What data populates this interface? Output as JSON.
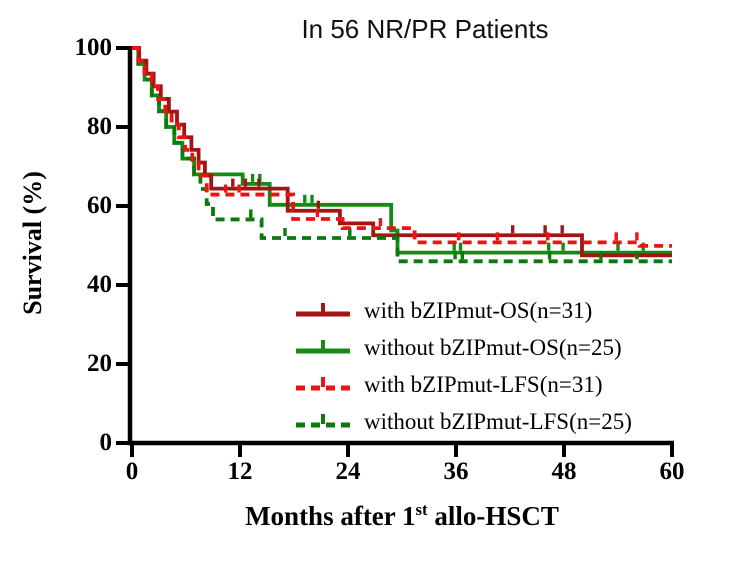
{
  "title": "In 56 NR/PR Patients",
  "colors": {
    "axis": "#000000",
    "dark_red": "#A31515",
    "green": "#168A16",
    "bright_red": "#EE1212",
    "dark_green": "#0A7A0A"
  },
  "y_axis": {
    "label": "Survival (%)",
    "ticks": [
      0,
      20,
      40,
      60,
      80,
      100
    ]
  },
  "x_axis": {
    "label_main": "Months after 1",
    "label_sup": "st",
    "label_rest": " allo-HSCT",
    "ticks": [
      0,
      12,
      24,
      36,
      48,
      60
    ]
  },
  "chart_data": {
    "type": "line",
    "subtype": "kaplan-meier-step",
    "title": "In 56 NR/PR Patients",
    "xlabel": "Months after 1st allo-HSCT",
    "ylabel": "Survival (%)",
    "xlim": [
      0,
      60
    ],
    "ylim": [
      0,
      100
    ],
    "grid": false,
    "legend_position": "inside lower right",
    "series": [
      {
        "name": "with bZIPmut-OS(n=31)",
        "id": "os-with-bzipmut",
        "color": "#A31515",
        "style": "solid",
        "steps": [
          [
            0,
            100
          ],
          [
            0.8,
            96.8
          ],
          [
            1.6,
            93.5
          ],
          [
            2.4,
            90.3
          ],
          [
            3.2,
            87.1
          ],
          [
            4.1,
            83.9
          ],
          [
            5,
            80.6
          ],
          [
            5.8,
            77.4
          ],
          [
            6.6,
            74.2
          ],
          [
            7.4,
            71
          ],
          [
            8.1,
            67.7
          ],
          [
            8.8,
            64.4
          ],
          [
            17.3,
            58.8
          ],
          [
            23.1,
            55.6
          ],
          [
            26.8,
            52.6
          ],
          [
            50,
            47.5
          ]
        ],
        "censors": [
          [
            11.2,
            64.4
          ],
          [
            12.6,
            64.4
          ],
          [
            14.1,
            64.4
          ],
          [
            20.7,
            58.8
          ],
          [
            42.3,
            52.6
          ],
          [
            45.9,
            52.6
          ],
          [
            47.8,
            52.6
          ]
        ]
      },
      {
        "name": "without bZIPmut-OS(n=25)",
        "id": "os-without-bzipmut",
        "color": "#168A16",
        "style": "solid",
        "steps": [
          [
            0,
            100
          ],
          [
            0.7,
            96
          ],
          [
            1.4,
            92
          ],
          [
            2.2,
            88
          ],
          [
            3,
            84
          ],
          [
            3.8,
            80
          ],
          [
            4.7,
            76
          ],
          [
            5.6,
            72
          ],
          [
            6.9,
            68
          ],
          [
            12.3,
            65.6
          ],
          [
            15.3,
            60.3
          ],
          [
            28.8,
            53.8
          ],
          [
            29.5,
            48.2
          ]
        ],
        "censors": [
          [
            13.4,
            65.6
          ],
          [
            14.2,
            65.6
          ],
          [
            19.2,
            60.3
          ],
          [
            20,
            60.3
          ],
          [
            35.8,
            48.2
          ],
          [
            36.5,
            48.2
          ],
          [
            46.3,
            48.2
          ],
          [
            47.9,
            48.2
          ],
          [
            54,
            48.2
          ],
          [
            56.8,
            48.2
          ]
        ]
      },
      {
        "name": "with bZIPmut-LFS(n=31)",
        "id": "lfs-with-bzipmut",
        "color": "#EE1212",
        "style": "dashed",
        "steps": [
          [
            0,
            100
          ],
          [
            0.7,
            96.8
          ],
          [
            1.4,
            93.5
          ],
          [
            2.2,
            90.3
          ],
          [
            2.9,
            87.1
          ],
          [
            3.7,
            83.9
          ],
          [
            4.4,
            80.6
          ],
          [
            5.2,
            77.4
          ],
          [
            5.9,
            74.2
          ],
          [
            6.7,
            71
          ],
          [
            7.4,
            67.7
          ],
          [
            8.3,
            62.9
          ],
          [
            17.9,
            56.7
          ],
          [
            23.4,
            54.4
          ],
          [
            31.4,
            50.8
          ],
          [
            56.4,
            49.9
          ]
        ],
        "censors": [
          [
            10.4,
            62.9
          ],
          [
            11.9,
            62.9
          ],
          [
            20.6,
            56.7
          ],
          [
            27.6,
            54.4
          ],
          [
            36.3,
            50.8
          ],
          [
            40.6,
            50.8
          ],
          [
            46.2,
            50.8
          ],
          [
            53.8,
            50.8
          ],
          [
            56.1,
            50.8
          ]
        ]
      },
      {
        "name": "without bZIPmut-LFS(n=25)",
        "id": "lfs-without-bzipmut",
        "color": "#0A7A0A",
        "style": "dashed",
        "steps": [
          [
            0,
            100
          ],
          [
            0.7,
            96
          ],
          [
            1.4,
            92
          ],
          [
            2.2,
            88
          ],
          [
            3,
            84
          ],
          [
            3.8,
            80
          ],
          [
            4.7,
            76
          ],
          [
            5.6,
            72
          ],
          [
            6.9,
            68
          ],
          [
            7.6,
            64.3
          ],
          [
            8.3,
            60.5
          ],
          [
            9,
            56.6
          ],
          [
            14.4,
            51.9
          ],
          [
            29.5,
            46
          ]
        ],
        "censors": [
          [
            13.2,
            56.6
          ],
          [
            17,
            51.9
          ],
          [
            24.2,
            51.9
          ],
          [
            35.9,
            46
          ],
          [
            36.7,
            46
          ],
          [
            46.4,
            46
          ],
          [
            52.1,
            46
          ],
          [
            56.1,
            46
          ]
        ]
      }
    ]
  }
}
